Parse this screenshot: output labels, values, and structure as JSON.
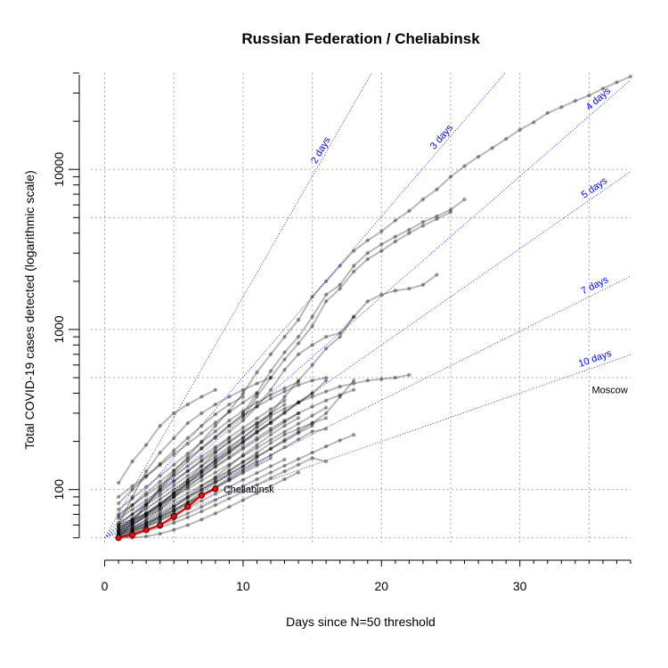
{
  "chart_data": {
    "type": "line",
    "title": "Russian Federation / Cheliabinsk",
    "xlabel": "Days since N=50 threshold",
    "ylabel": "Total COVID-19 cases detected (logarithmic scale)",
    "x_scale": "linear",
    "y_scale": "log",
    "xlim": [
      0,
      38
    ],
    "ylim": [
      45,
      40000
    ],
    "x_ticks": [
      0,
      10,
      20,
      30
    ],
    "y_ticks": [
      100,
      1000,
      10000
    ],
    "grid": true,
    "doubling_lines": [
      {
        "label": "2 days",
        "days": 2
      },
      {
        "label": "3 days",
        "days": 3
      },
      {
        "label": "4 days",
        "days": 4
      },
      {
        "label": "5 days",
        "days": 5
      },
      {
        "label": "7 days",
        "days": 7
      },
      {
        "label": "10 days",
        "days": 10
      }
    ],
    "highlight": {
      "name": "Cheliabinsk",
      "x": [
        1,
        2,
        3,
        4,
        5,
        6,
        7,
        8
      ],
      "y": [
        50,
        52,
        56,
        60,
        68,
        78,
        92,
        101
      ]
    },
    "annotations": [
      {
        "text": "Moscow",
        "x": 36.5,
        "y": 420
      }
    ],
    "background_series": [
      {
        "x": [
          1,
          2,
          3,
          4,
          5,
          6,
          7,
          8,
          9,
          10,
          11,
          12,
          13,
          14,
          15,
          16,
          17,
          18,
          19,
          20,
          21,
          22,
          23,
          24,
          25,
          26,
          27,
          28,
          29,
          30,
          31,
          32,
          33,
          34,
          35,
          36,
          37,
          38
        ],
        "y": [
          50,
          62,
          80,
          103,
          130,
          160,
          200,
          250,
          310,
          400,
          540,
          700,
          900,
          1150,
          1600,
          2000,
          2500,
          3100,
          3600,
          4100,
          4800,
          5500,
          6500,
          7500,
          9000,
          10500,
          12000,
          13600,
          15500,
          17700,
          19700,
          22500,
          24500,
          26800,
          29000,
          32000,
          35000,
          38000
        ]
      },
      {
        "x": [
          10,
          11,
          12,
          13,
          14,
          15,
          16,
          17,
          18,
          19,
          20,
          21,
          22,
          23,
          24,
          25,
          26
        ],
        "y": [
          300,
          400,
          550,
          720,
          900,
          1200,
          1650,
          1900,
          2500,
          3000,
          3400,
          3800,
          4200,
          4700,
          5100,
          5600,
          6500
        ]
      },
      {
        "x": [
          10,
          11,
          12,
          13,
          14,
          15,
          16,
          17,
          18,
          19,
          20,
          21,
          22,
          23,
          24,
          25
        ],
        "y": [
          280,
          380,
          500,
          650,
          820,
          1050,
          1500,
          1800,
          2300,
          2750,
          3100,
          3550,
          4000,
          4450,
          4900,
          5400
        ]
      },
      {
        "x": [
          9,
          10,
          11,
          12,
          13,
          14,
          15,
          16,
          17,
          18,
          19,
          20,
          21,
          22,
          23,
          24
        ],
        "y": [
          230,
          270,
          330,
          420,
          560,
          700,
          800,
          900,
          950,
          1200,
          1500,
          1650,
          1750,
          1800,
          1900,
          2200
        ]
      },
      {
        "x": [
          1,
          2,
          3,
          4,
          5,
          6,
          7,
          8,
          9,
          10,
          11,
          12,
          13,
          14,
          15,
          16,
          17,
          18,
          19,
          20,
          21,
          22
        ],
        "y": [
          58,
          62,
          70,
          80,
          95,
          115,
          140,
          170,
          200,
          230,
          260,
          290,
          320,
          350,
          380,
          410,
          440,
          460,
          480,
          490,
          500,
          520
        ]
      },
      {
        "x": [
          1,
          2,
          3,
          4,
          5,
          6,
          7,
          8,
          9,
          10,
          11,
          12,
          13,
          14,
          15,
          16
        ],
        "y": [
          55,
          65,
          80,
          100,
          125,
          150,
          180,
          210,
          250,
          290,
          330,
          370,
          410,
          450,
          480,
          500
        ]
      },
      {
        "x": [
          1,
          2,
          3,
          4,
          5,
          6,
          7,
          8,
          9,
          10,
          11,
          12,
          13,
          14,
          15,
          16,
          17,
          18
        ],
        "y": [
          53,
          58,
          65,
          75,
          90,
          110,
          130,
          155,
          180,
          210,
          250,
          300,
          380,
          480,
          600,
          760,
          900,
          1200
        ]
      },
      {
        "x": [
          1,
          2,
          3,
          4,
          5,
          6,
          7,
          8,
          9,
          10,
          11,
          12,
          13,
          14,
          15,
          16
        ],
        "y": [
          60,
          65,
          70,
          80,
          95,
          110,
          125,
          145,
          170,
          200,
          230,
          260,
          300,
          350,
          400,
          480
        ]
      },
      {
        "x": [
          1,
          2,
          3,
          4,
          5,
          6,
          7,
          8,
          9,
          10,
          11,
          12,
          13,
          14,
          15,
          16
        ],
        "y": [
          52,
          56,
          62,
          70,
          78,
          88,
          100,
          115,
          130,
          150,
          170,
          195,
          220,
          240,
          260,
          280
        ]
      },
      {
        "x": [
          1,
          2,
          3,
          4,
          5,
          6,
          7,
          8
        ],
        "y": [
          110,
          150,
          190,
          250,
          300,
          340,
          380,
          420
        ]
      },
      {
        "x": [
          1,
          2,
          3,
          4,
          5,
          6,
          7,
          8,
          9,
          10,
          11,
          12
        ],
        "y": [
          60,
          90,
          130,
          170,
          210,
          260,
          300,
          340,
          380,
          420,
          460,
          500
        ]
      },
      {
        "x": [
          1,
          2,
          3,
          4,
          5,
          6,
          7,
          8,
          9,
          10,
          11,
          12,
          13,
          14,
          15,
          16,
          17,
          18
        ],
        "y": [
          50,
          54,
          59,
          66,
          74,
          84,
          96,
          110,
          125,
          140,
          160,
          180,
          205,
          230,
          260,
          300,
          380,
          480
        ]
      },
      {
        "x": [
          1,
          2,
          3,
          4,
          5,
          6,
          7,
          8,
          9,
          10,
          11,
          12,
          13,
          14
        ],
        "y": [
          50,
          55,
          60,
          68,
          78,
          90,
          105,
          120,
          140,
          165,
          190,
          220,
          250,
          280
        ]
      },
      {
        "x": [
          1,
          2,
          3,
          4,
          5,
          6,
          7,
          8,
          9,
          10,
          11,
          12,
          13,
          14,
          15,
          16,
          17,
          18
        ],
        "y": [
          55,
          60,
          68,
          78,
          90,
          104,
          120,
          140,
          160,
          185,
          210,
          240,
          270,
          300,
          330,
          360,
          390,
          420
        ]
      },
      {
        "x": [
          1,
          2,
          3,
          4,
          5,
          6,
          7,
          8,
          9,
          10,
          11,
          12,
          13,
          14,
          15
        ],
        "y": [
          54,
          58,
          64,
          72,
          80,
          90,
          100,
          112,
          125,
          140,
          160,
          180,
          200,
          225,
          250
        ]
      },
      {
        "x": [
          1,
          2,
          3,
          4,
          5,
          6,
          7,
          8,
          9,
          10,
          11,
          12,
          13,
          14,
          15,
          16
        ],
        "y": [
          52,
          56,
          61,
          67,
          74,
          82,
          92,
          103,
          115,
          130,
          146,
          164,
          184,
          206,
          230,
          240
        ]
      },
      {
        "x": [
          1,
          2,
          3,
          4,
          5,
          6,
          7,
          8,
          9,
          10,
          11,
          12,
          13,
          14,
          15,
          16,
          17,
          18
        ],
        "y": [
          51,
          53,
          56,
          60,
          65,
          71,
          78,
          86,
          95,
          105,
          116,
          128,
          141,
          155,
          170,
          186,
          203,
          220
        ]
      },
      {
        "x": [
          1,
          2,
          3,
          4,
          5,
          6,
          7,
          8,
          9,
          10,
          11,
          12,
          13,
          14,
          15,
          16
        ],
        "y": [
          50,
          52,
          55,
          58,
          62,
          67,
          73,
          80,
          88,
          97,
          107,
          118,
          130,
          143,
          157,
          150
        ]
      },
      {
        "x": [
          1,
          2,
          3,
          4,
          5,
          6,
          7,
          8,
          9,
          10,
          11,
          12,
          13,
          14
        ],
        "y": [
          50,
          50,
          51,
          53,
          56,
          60,
          65,
          71,
          78,
          86,
          95,
          105,
          116,
          128
        ]
      },
      {
        "x": [
          1,
          2,
          3,
          4,
          5,
          6,
          7,
          8,
          9,
          10,
          11,
          12
        ],
        "y": [
          54,
          60,
          70,
          82,
          95,
          110,
          128,
          148,
          170,
          195,
          225,
          260
        ]
      },
      {
        "x": [
          1,
          2,
          3,
          4,
          5,
          6,
          7,
          8,
          9,
          10,
          11,
          12,
          13
        ],
        "y": [
          66,
          75,
          86,
          99,
          114,
          130,
          150,
          172,
          197,
          226,
          260,
          300,
          340
        ]
      },
      {
        "x": [
          1,
          2,
          3,
          4,
          5,
          6,
          7,
          8,
          9,
          10,
          11,
          12,
          13,
          14
        ],
        "y": [
          75,
          88,
          104,
          122,
          143,
          168,
          197,
          231,
          270,
          310,
          350,
          390,
          430,
          470
        ]
      },
      {
        "x": [
          1,
          2,
          3,
          4,
          5,
          6,
          7,
          8,
          9,
          10,
          11
        ],
        "y": [
          90,
          105,
          122,
          142,
          166,
          193,
          225,
          262,
          305,
          350,
          400
        ]
      },
      {
        "x": [
          1,
          2,
          3,
          4,
          5,
          6,
          7,
          8,
          9,
          10
        ],
        "y": [
          82,
          100,
          120,
          145,
          175,
          210,
          250,
          295,
          340,
          380
        ]
      },
      {
        "x": [
          1,
          2,
          3,
          4,
          5,
          6,
          7,
          8,
          9,
          10,
          11,
          12,
          13,
          14
        ],
        "y": [
          57,
          64,
          72,
          82,
          93,
          106,
          121,
          138,
          157,
          179,
          204,
          232,
          264,
          300
        ]
      },
      {
        "x": [
          1,
          2,
          3,
          4,
          5,
          6,
          7,
          8,
          9,
          10,
          11,
          12
        ],
        "y": [
          62,
          70,
          80,
          92,
          106,
          122,
          140,
          161,
          185,
          212,
          243,
          280
        ]
      },
      {
        "x": [
          1,
          2,
          3,
          4,
          5,
          6,
          7,
          8,
          9,
          10,
          11,
          12,
          13,
          14,
          15,
          16
        ],
        "y": [
          56,
          63,
          71,
          80,
          90,
          101,
          114,
          128,
          144,
          162,
          182,
          205,
          230,
          258,
          290,
          325
        ]
      },
      {
        "x": [
          1,
          2,
          3,
          4,
          5,
          6,
          7,
          8,
          9,
          10,
          11,
          12,
          13
        ],
        "y": [
          70,
          80,
          92,
          106,
          122,
          140,
          161,
          185,
          212,
          243,
          278,
          318,
          360
        ]
      },
      {
        "x": [
          1,
          2,
          3,
          4,
          5,
          6,
          7,
          8,
          9,
          10,
          11,
          12
        ],
        "y": [
          53,
          57,
          62,
          68,
          75,
          83,
          92,
          102,
          114,
          127,
          141,
          157
        ]
      },
      {
        "x": [
          1,
          2,
          3,
          4,
          5,
          6,
          7,
          8,
          9,
          10,
          11
        ],
        "y": [
          50,
          53,
          58,
          64,
          72,
          81,
          92,
          104,
          118,
          134,
          152
        ]
      },
      {
        "x": [
          1,
          2,
          3,
          4,
          5,
          6,
          7,
          8,
          9,
          10,
          11,
          12,
          13,
          14,
          15
        ],
        "y": [
          58,
          66,
          76,
          87,
          100,
          115,
          132,
          152,
          175,
          200,
          230,
          265,
          305,
          350,
          400
        ]
      },
      {
        "x": [
          1,
          2,
          3,
          4,
          5,
          6,
          7,
          8,
          9,
          10
        ],
        "y": [
          68,
          80,
          95,
          112,
          132,
          155,
          182,
          214,
          252,
          296
        ]
      },
      {
        "x": [
          1,
          2,
          3,
          4,
          5,
          6,
          7,
          8,
          9,
          10,
          11,
          12,
          13
        ],
        "y": [
          52,
          55,
          59,
          64,
          70,
          77,
          85,
          94,
          104,
          115,
          127,
          140,
          154
        ]
      },
      {
        "x": [
          1,
          2,
          3,
          4,
          5,
          6,
          7,
          8,
          9,
          10,
          11
        ],
        "y": [
          55,
          61,
          68,
          76,
          85,
          95,
          106,
          118,
          132,
          148,
          165
        ]
      },
      {
        "x": [
          1,
          2,
          3,
          4,
          5,
          6,
          7,
          8,
          9
        ],
        "y": [
          60,
          70,
          82,
          96,
          112,
          131,
          153,
          179,
          209
        ]
      }
    ]
  }
}
